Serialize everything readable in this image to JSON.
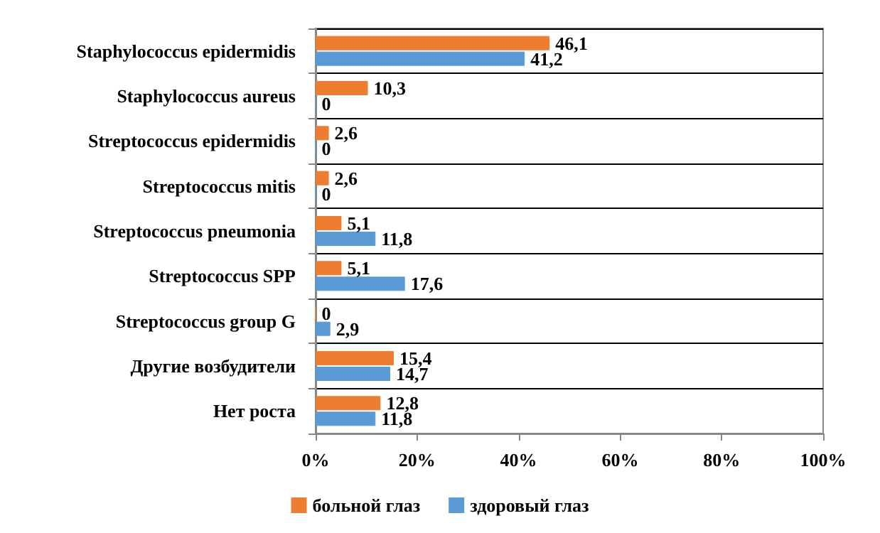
{
  "chart_data": {
    "type": "bar",
    "orientation": "horizontal",
    "categories": [
      "Staphylococcus epidermidis",
      "Staphylococcus aureus",
      "Streptococcus epidermidis",
      "Streptococcus mitis",
      "Streptococcus pneumonia",
      "Streptococcus SPP",
      "Streptococcus group G",
      "Другие возбудители",
      "Нет роста"
    ],
    "series": [
      {
        "name": "больной глаз",
        "color": "#ed7d31",
        "values": [
          46.1,
          10.3,
          2.6,
          2.6,
          5.1,
          5.1,
          0,
          15.4,
          12.8
        ],
        "value_labels": [
          "46,1",
          "10,3",
          "2,6",
          "2,6",
          "5,1",
          "5,1",
          "0",
          "15,4",
          "12,8"
        ]
      },
      {
        "name": "здоровый глаз",
        "color": "#5b9bd5",
        "values": [
          41.2,
          0,
          0,
          0,
          11.8,
          17.6,
          2.9,
          14.7,
          11.8
        ],
        "value_labels": [
          "41,2",
          "0",
          "0",
          "0",
          "11,8",
          "17,6",
          "2,9",
          "14,7",
          "11,8"
        ]
      }
    ],
    "xlim": [
      0,
      100
    ],
    "xticks": [
      {
        "value": 0,
        "label": "0%"
      },
      {
        "value": 20,
        "label": "20%"
      },
      {
        "value": 40,
        "label": "40%"
      },
      {
        "value": 60,
        "label": "60%"
      },
      {
        "value": 80,
        "label": "80%"
      },
      {
        "value": 100,
        "label": "100%"
      }
    ],
    "grid": "y",
    "legend": "bottom"
  }
}
